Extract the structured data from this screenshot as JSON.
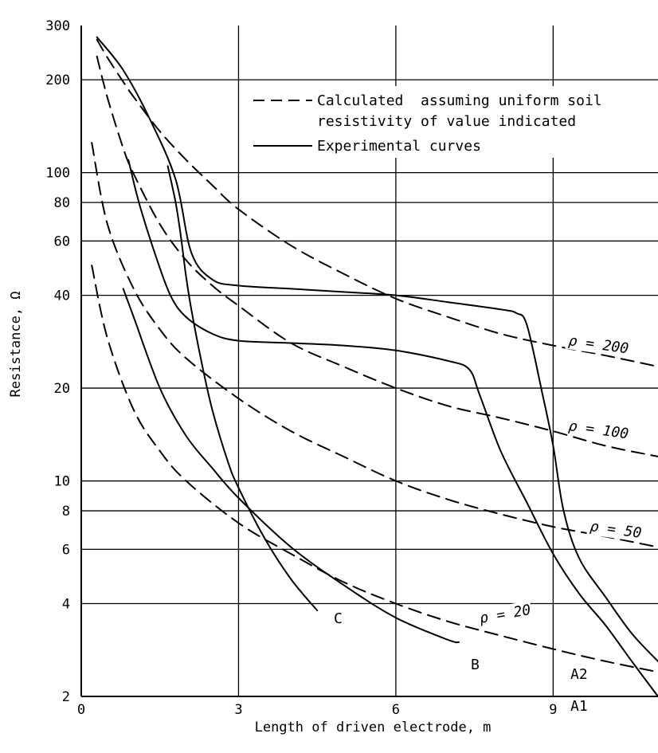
{
  "chart_data": {
    "type": "line",
    "xlabel": "Length of driven electrode, m",
    "ylabel": "Resistance, Ω",
    "x_scale": "linear",
    "y_scale": "log",
    "xlim": [
      0,
      11
    ],
    "ylim": [
      2,
      300
    ],
    "x_ticks": [
      "0",
      "3",
      "6",
      "9"
    ],
    "y_ticks": [
      "2",
      "4",
      "6",
      "8",
      "10",
      "20",
      "40",
      "60",
      "80",
      "100",
      "200",
      "300"
    ],
    "grid": true,
    "legend_position": "top-center",
    "legend": [
      {
        "style": "dashed",
        "label_lines": [
          "Calculated  assuming uniform soil",
          "resistivity of value indicated"
        ]
      },
      {
        "style": "solid",
        "label_lines": [
          "Experimental curves"
        ]
      }
    ],
    "series": [
      {
        "name": "ρ = 200",
        "style": "dashed",
        "x": [
          0.3,
          0.5,
          0.8,
          1.0,
          1.5,
          2.0,
          2.5,
          3.0,
          4.0,
          5.0,
          6.0,
          7.0,
          8.0,
          9.0,
          10.0,
          11.0
        ],
        "y": [
          270,
          236,
          197,
          176,
          136,
          110,
          91,
          76,
          58,
          47,
          39,
          34,
          30,
          27.5,
          25.5,
          23.5
        ]
      },
      {
        "name": "ρ = 100",
        "style": "dashed",
        "x": [
          0.3,
          0.5,
          0.8,
          1.0,
          1.5,
          2.0,
          2.5,
          3.0,
          4.0,
          5.0,
          6.0,
          7.0,
          8.0,
          9.0,
          10.0,
          11.0
        ],
        "y": [
          238,
          175,
          120,
          99,
          68,
          52,
          43,
          37,
          28,
          23.5,
          20,
          17.5,
          16,
          14.5,
          13,
          12
        ]
      },
      {
        "name": "ρ = 50",
        "style": "dashed",
        "x": [
          0.2,
          0.5,
          1.0,
          1.5,
          2.0,
          3.0,
          4.0,
          5.0,
          6.0,
          7.0,
          8.0,
          9.0,
          10.0,
          11.0
        ],
        "y": [
          125,
          68,
          42,
          31,
          25,
          18.5,
          14.5,
          12,
          10,
          8.7,
          7.8,
          7.1,
          6.6,
          6.1
        ]
      },
      {
        "name": "ρ = 20",
        "style": "dashed",
        "x": [
          0.2,
          0.5,
          1.0,
          1.5,
          2.0,
          3.0,
          4.0,
          5.0,
          6.0,
          7.0,
          8.0,
          9.0,
          10.0,
          11.0
        ],
        "y": [
          50,
          29,
          17,
          12.5,
          10,
          7.3,
          5.8,
          4.7,
          4.0,
          3.5,
          3.15,
          2.85,
          2.6,
          2.4
        ]
      },
      {
        "name": "A2",
        "style": "solid",
        "x": [
          0.3,
          0.8,
          1.3,
          1.8,
          2.1,
          2.5,
          3.0,
          4.0,
          5.0,
          6.0,
          7.0,
          8.0,
          8.3,
          8.5,
          8.8,
          9.0,
          9.2,
          9.5,
          10.0,
          10.5,
          11.0
        ],
        "y": [
          275,
          215,
          150,
          95,
          55,
          45,
          43,
          42,
          41,
          40,
          38,
          36,
          35,
          32,
          19,
          13,
          8,
          5.6,
          4.2,
          3.2,
          2.6
        ]
      },
      {
        "name": "A1",
        "style": "solid",
        "x": [
          0.9,
          1.1,
          1.4,
          1.7,
          2.0,
          2.5,
          3.0,
          4.0,
          5.0,
          6.0,
          7.0,
          7.4,
          7.6,
          8.0,
          8.5,
          9.0,
          9.5,
          10.0,
          10.5,
          11.0
        ],
        "y": [
          110,
          80,
          55,
          40,
          34,
          30,
          28.5,
          28,
          27.5,
          26.5,
          24.5,
          23,
          19,
          12.5,
          8.5,
          5.8,
          4.3,
          3.4,
          2.6,
          2.0
        ]
      },
      {
        "name": "B",
        "style": "solid",
        "x": [
          0.8,
          1.0,
          1.5,
          2.0,
          2.5,
          3.0,
          4.0,
          5.0,
          6.0,
          7.0,
          7.2
        ],
        "y": [
          42,
          34,
          20,
          14,
          11,
          8.8,
          6.1,
          4.6,
          3.6,
          3.05,
          3.0
        ]
      },
      {
        "name": "C",
        "style": "solid",
        "x": [
          1.65,
          1.8,
          1.9,
          2.0,
          2.1,
          2.3,
          2.5,
          2.8,
          3.0,
          3.5,
          4.0,
          4.5
        ],
        "y": [
          105,
          80,
          62,
          46,
          36,
          24,
          17,
          11.5,
          9.5,
          6.5,
          4.8,
          3.8
        ]
      }
    ],
    "curve_labels": [
      {
        "text": "A2",
        "series": "A2"
      },
      {
        "text": "A1",
        "series": "A1"
      },
      {
        "text": "B",
        "series": "B"
      },
      {
        "text": "C",
        "series": "C"
      }
    ],
    "rho_labels": [
      {
        "text": "ρ = 200",
        "series": "ρ = 200"
      },
      {
        "text": "ρ = 100",
        "series": "ρ = 100"
      },
      {
        "text": "ρ = 50",
        "series": "ρ = 50"
      },
      {
        "text": "ρ = 20",
        "series": "ρ = 20"
      }
    ]
  }
}
